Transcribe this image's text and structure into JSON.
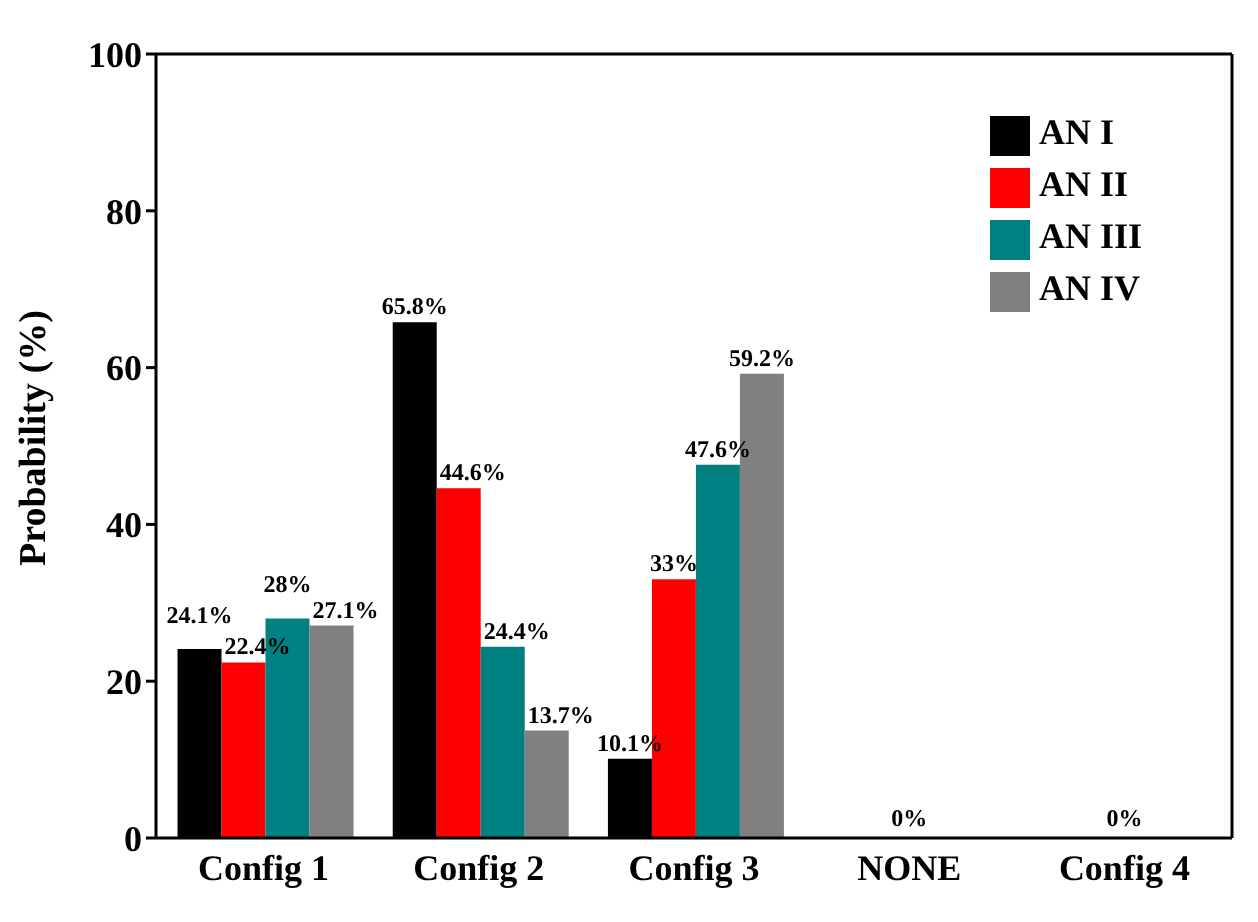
{
  "chart_data": {
    "type": "bar",
    "ylabel": "Probability (%)",
    "categories": [
      "Config 1",
      "Config 2",
      "Config 3",
      "NONE",
      "Config 4"
    ],
    "series": [
      {
        "name": "AN I",
        "color": "#000000",
        "values": [
          24.1,
          65.8,
          10.1,
          0,
          0
        ],
        "value_labels": [
          "24.1%",
          "65.8%",
          "10.1%",
          null,
          null
        ]
      },
      {
        "name": "AN II",
        "color": "#ff0000",
        "values": [
          22.4,
          44.6,
          33,
          0,
          0
        ],
        "value_labels": [
          "22.4%",
          "44.6%",
          "33%",
          "0%",
          "0%"
        ]
      },
      {
        "name": "AN III",
        "color": "#008080",
        "values": [
          28,
          24.4,
          47.6,
          0,
          0
        ],
        "value_labels": [
          "28%",
          "24.4%",
          "47.6%",
          null,
          null
        ]
      },
      {
        "name": "AN IV",
        "color": "#808080",
        "values": [
          27.1,
          13.7,
          59.2,
          0,
          0
        ],
        "value_labels": [
          "27.1%",
          "13.7%",
          "59.2%",
          null,
          null
        ]
      }
    ],
    "ylim": [
      0,
      100
    ],
    "yticks": [
      0,
      20,
      40,
      60,
      80,
      100
    ],
    "grid": false,
    "legend": "top right"
  }
}
